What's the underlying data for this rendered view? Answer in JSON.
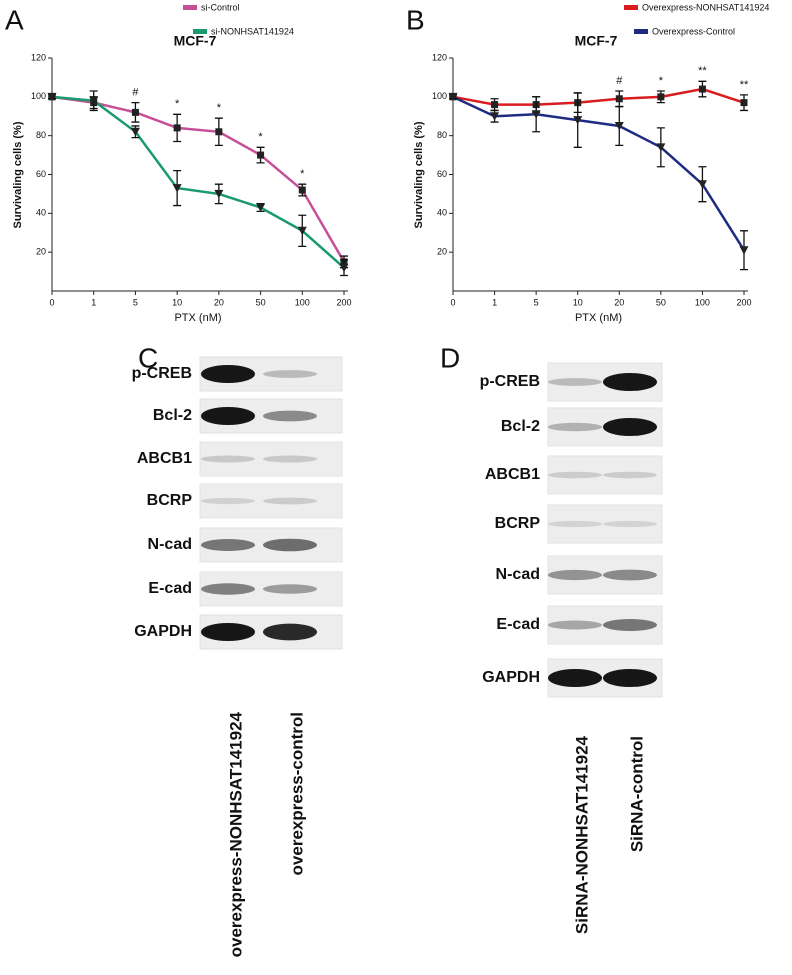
{
  "chart_data": [
    {
      "type": "line",
      "panel": "A",
      "title": "MCF-7",
      "xlabel": "PTX (nM)",
      "ylabel": "Survivaling cells (%)",
      "categories": [
        "0",
        "1",
        "5",
        "10",
        "20",
        "50",
        "100",
        "200"
      ],
      "ylim": [
        0,
        120
      ],
      "yticks": [
        20,
        40,
        60,
        80,
        100,
        120
      ],
      "series": [
        {
          "name": "si-Control",
          "color": "#c64f97",
          "marker": "square",
          "values": [
            100,
            97,
            92,
            84,
            82,
            70,
            52,
            15
          ],
          "errors": [
            1,
            3,
            5,
            7,
            7,
            4,
            3,
            3
          ]
        },
        {
          "name": "si-NONHSAT141924",
          "color": "#189a6c",
          "marker": "triangle-down",
          "values": [
            100,
            98,
            82,
            53,
            50,
            43,
            31,
            12
          ],
          "errors": [
            1,
            5,
            3,
            9,
            5,
            2,
            8,
            4
          ]
        }
      ],
      "annotations": [
        {
          "x": "5",
          "text": "#"
        },
        {
          "x": "10",
          "text": "*"
        },
        {
          "x": "20",
          "text": "*"
        },
        {
          "x": "50",
          "text": "*"
        },
        {
          "x": "100",
          "text": "*"
        }
      ]
    },
    {
      "type": "line",
      "panel": "B",
      "title": "MCF-7",
      "xlabel": "PTX (nM)",
      "ylabel": "Survivaling cells (%)",
      "categories": [
        "0",
        "1",
        "5",
        "10",
        "20",
        "50",
        "100",
        "200"
      ],
      "ylim": [
        0,
        120
      ],
      "yticks": [
        20,
        40,
        60,
        80,
        100,
        120
      ],
      "series": [
        {
          "name": "Overexpress-NONHSAT141924",
          "color": "#d81c20",
          "marker": "square",
          "values": [
            100,
            96,
            96,
            97,
            99,
            100,
            104,
            97
          ],
          "errors": [
            1,
            3,
            4,
            5,
            4,
            3,
            4,
            4
          ]
        },
        {
          "name": "Overexpress-Control",
          "color": "#1f2b82",
          "marker": "triangle-down",
          "values": [
            100,
            90,
            91,
            88,
            85,
            74,
            55,
            21
          ],
          "errors": [
            1,
            3,
            9,
            14,
            10,
            10,
            9,
            10
          ]
        }
      ],
      "annotations": [
        {
          "x": "20",
          "text": "#"
        },
        {
          "x": "50",
          "text": "*"
        },
        {
          "x": "100",
          "text": "**"
        },
        {
          "x": "200",
          "text": "**"
        }
      ]
    }
  ],
  "blots": [
    {
      "panel": "C",
      "rows": [
        "p-CREB",
        "Bcl-2",
        "ABCB1",
        "BCRP",
        "N-cad",
        "E-cad",
        "GAPDH"
      ],
      "lanes": [
        "overexpress-NONHSAT141924",
        "overexpress-control"
      ]
    },
    {
      "panel": "D",
      "rows": [
        "p-CREB",
        "Bcl-2",
        "ABCB1",
        "BCRP",
        "N-cad",
        "E-cad",
        "GAPDH"
      ],
      "lanes": [
        "SiRNA-NONHSAT141924",
        "SiRNA-control"
      ]
    }
  ]
}
